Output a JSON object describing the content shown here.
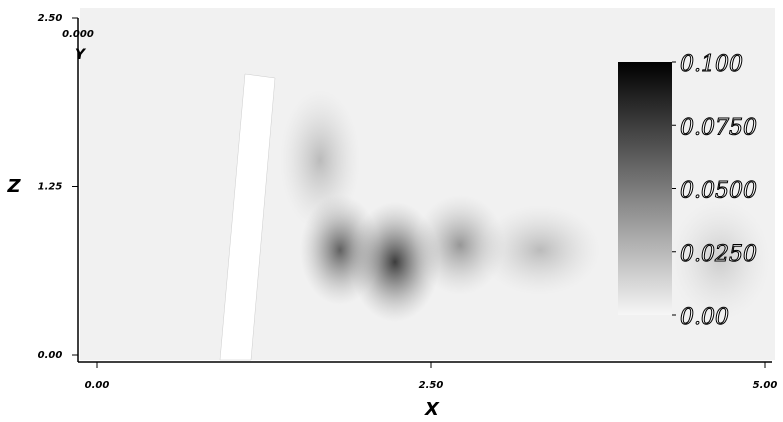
{
  "chart_data": {
    "type": "heatmap",
    "x_label": "X",
    "z_label": "Z",
    "y_label": "Y",
    "y_slice": {
      "value": 0,
      "label": "0.000"
    },
    "xlim": [
      0,
      5
    ],
    "xticks": [
      {
        "value": 0,
        "label": "0.00"
      },
      {
        "value": 2.5,
        "label": "2.50"
      },
      {
        "value": 5,
        "label": "5.00"
      }
    ],
    "zlim": [
      0,
      2.5
    ],
    "zticks": [
      {
        "value": 0,
        "label": "0.00"
      },
      {
        "value": 1.25,
        "label": "1.25"
      },
      {
        "value": 2.5,
        "label": "2.50"
      }
    ],
    "clim": [
      0,
      0.1
    ],
    "cticks": [
      {
        "value": 0,
        "label": "0.00"
      },
      {
        "value": 0.025,
        "label": "0.0250"
      },
      {
        "value": 0.05,
        "label": "0.0500"
      },
      {
        "value": 0.075,
        "label": "0.0750"
      },
      {
        "value": 0.1,
        "label": "0.100"
      }
    ],
    "colors": [
      "#f6f6f6",
      "#000000"
    ]
  }
}
